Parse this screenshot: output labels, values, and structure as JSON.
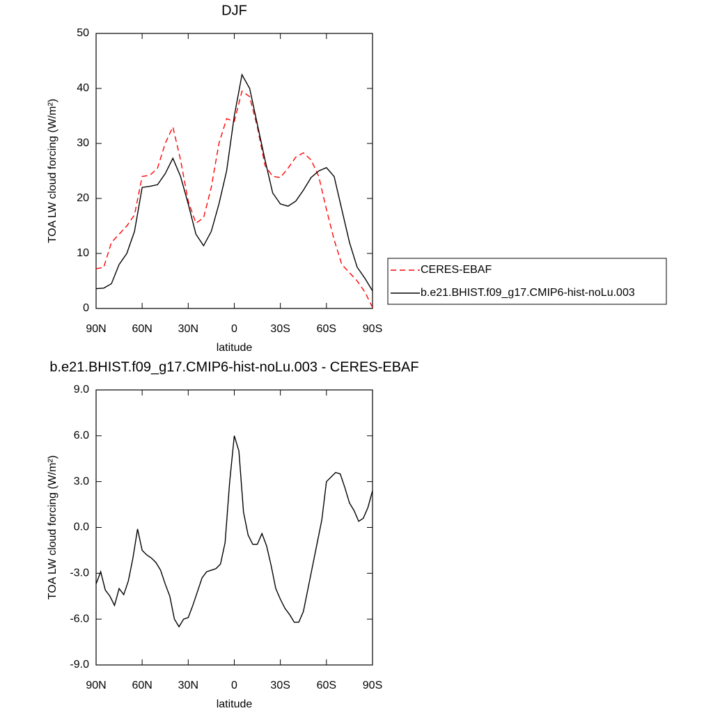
{
  "chart_data": [
    {
      "type": "line",
      "title": "DJF",
      "xlabel": "latitude",
      "ylabel": "TOA LW cloud forcing (W/m²)",
      "x": [
        90,
        85,
        80,
        75,
        70,
        65,
        60,
        55,
        50,
        45,
        40,
        35,
        30,
        25,
        20,
        15,
        10,
        5,
        0,
        -5,
        -10,
        -15,
        -20,
        -25,
        -30,
        -35,
        -40,
        -45,
        -50,
        -55,
        -60,
        -65,
        -70,
        -75,
        -80,
        -85,
        -90
      ],
      "xlim": [
        90,
        -90
      ],
      "xticks": [
        {
          "value": 90,
          "label": "90N"
        },
        {
          "value": 60,
          "label": "60N"
        },
        {
          "value": 30,
          "label": "30N"
        },
        0,
        {
          "value": -30,
          "label": "30S"
        },
        {
          "value": -60,
          "label": "60S"
        },
        {
          "value": -90,
          "label": "90S"
        }
      ],
      "ylim": [
        0,
        50
      ],
      "yticks": [
        0,
        10,
        20,
        30,
        40,
        50
      ],
      "legend": "right",
      "series": [
        {
          "name": "CERES-EBAF",
          "color": "#ff0000",
          "linestyle": "dashed",
          "values": [
            7.2,
            7.5,
            12,
            13.5,
            15,
            17,
            24,
            24.2,
            25.5,
            30,
            33,
            27,
            19.5,
            15.5,
            16.5,
            22,
            30,
            34.5,
            34,
            39.5,
            38.5,
            33,
            26,
            24,
            23.8,
            25.5,
            27.5,
            28.3,
            27,
            24,
            18,
            12.5,
            8,
            6.5,
            5,
            3,
            0.2
          ]
        },
        {
          "name": "b.e21.BHIST.f09_g17.CMIP6-hist-noLu.003",
          "color": "#000000",
          "linestyle": "solid",
          "values": [
            3.6,
            3.7,
            4.5,
            8,
            10,
            14,
            22,
            22.2,
            22.5,
            24.5,
            27.3,
            24,
            19,
            13.5,
            11.4,
            14,
            19,
            25,
            35,
            42.5,
            40,
            33.5,
            27,
            21,
            19,
            18.6,
            19.5,
            21.5,
            23.8,
            25,
            25.6,
            24,
            18,
            12,
            7.5,
            5.5,
            3.2
          ]
        }
      ]
    },
    {
      "type": "line",
      "title": "b.e21.BHIST.f09_g17.CMIP6-hist-noLu.003 - CERES-EBAF",
      "xlabel": "latitude",
      "ylabel": "TOA LW cloud forcing (W/m²)",
      "x": [
        90,
        87,
        84,
        81,
        78,
        75,
        72,
        69,
        66,
        63,
        60,
        57,
        54,
        51,
        48,
        45,
        42,
        39,
        36,
        33,
        30,
        27,
        24,
        21,
        18,
        15,
        12,
        9,
        6,
        3,
        0,
        -3,
        -6,
        -9,
        -12,
        -15,
        -18,
        -21,
        -24,
        -27,
        -30,
        -33,
        -36,
        -39,
        -42,
        -45,
        -48,
        -51,
        -54,
        -57,
        -60,
        -63,
        -66,
        -69,
        -72,
        -75,
        -78,
        -81,
        -84,
        -87,
        -90
      ],
      "xlim": [
        90,
        -90
      ],
      "xticks": [
        {
          "value": 90,
          "label": "90N"
        },
        {
          "value": 60,
          "label": "60N"
        },
        {
          "value": 30,
          "label": "30N"
        },
        0,
        {
          "value": -30,
          "label": "30S"
        },
        {
          "value": -60,
          "label": "60S"
        },
        {
          "value": -90,
          "label": "90S"
        }
      ],
      "ylim": [
        -9,
        9
      ],
      "yticks": [
        {
          "value": -9,
          "label": "-9.0"
        },
        {
          "value": -6,
          "label": "-6.0"
        },
        {
          "value": -3,
          "label": "-3.0"
        },
        {
          "value": 0,
          "label": "0.0"
        },
        {
          "value": 3,
          "label": "3.0"
        },
        {
          "value": 6,
          "label": "6.0"
        },
        {
          "value": 9,
          "label": "9.0"
        }
      ],
      "series": [
        {
          "color": "#000000",
          "linestyle": "solid",
          "values": [
            -3.7,
            -2.9,
            -4.1,
            -4.5,
            -5.1,
            -4,
            -4.4,
            -3.5,
            -2,
            -0.1,
            -1.5,
            -1.8,
            -2,
            -2.3,
            -2.8,
            -3.7,
            -4.5,
            -6,
            -6.5,
            -6,
            -5.9,
            -5.1,
            -4.2,
            -3.3,
            -2.9,
            -2.8,
            -2.7,
            -2.4,
            -1,
            3,
            6,
            5,
            1,
            -0.5,
            -1.1,
            -1.1,
            -0.4,
            -1.2,
            -2.5,
            -4,
            -4.7,
            -5.3,
            -5.7,
            -6.2,
            -6.2,
            -5.5,
            -4,
            -2.5,
            -1,
            0.5,
            3,
            3.3,
            3.6,
            3.5,
            2.6,
            1.6,
            1.1,
            0.4,
            0.6,
            1.3,
            2.4
          ]
        }
      ]
    }
  ]
}
